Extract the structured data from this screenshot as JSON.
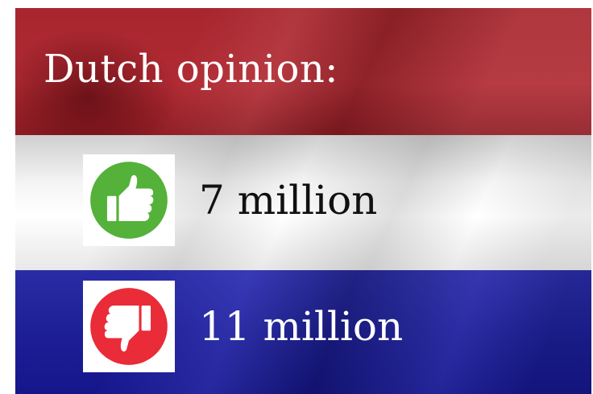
{
  "title": "Dutch opinion:",
  "rows": [
    {
      "icon": "thumbs-up-icon",
      "icon_color": "#54b13a",
      "count_text": "7 million"
    },
    {
      "icon": "thumbs-down-icon",
      "icon_color": "#ea2b38",
      "count_text": "11 million"
    }
  ],
  "flag_colors": {
    "red": "#ad2831",
    "white": "#f2f2f2",
    "blue": "#1e2098"
  }
}
